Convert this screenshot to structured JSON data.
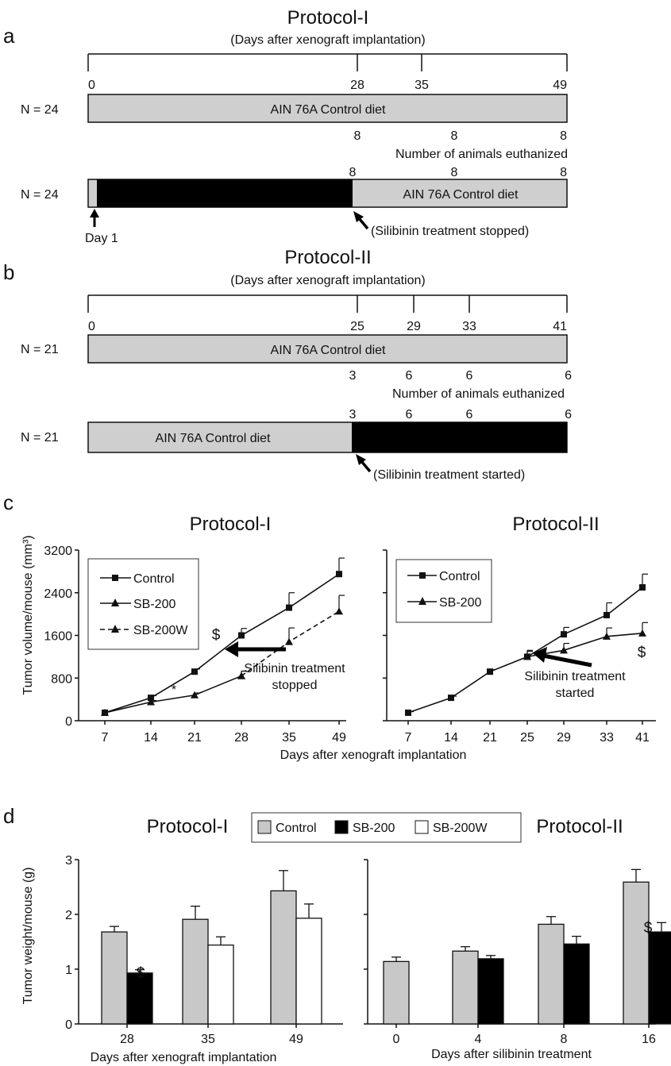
{
  "panel_a": {
    "letter": "a",
    "title": "Protocol-I",
    "subtitle": "(Days after xenograft implantation)",
    "days": [
      "0",
      "28",
      "35",
      "49"
    ],
    "control_n": "N = 24",
    "control_bar_label": "AIN 76A Control diet",
    "control_counts": [
      "8",
      "8",
      "8"
    ],
    "euthanized_label": "Number of animals euthanized",
    "treat_n": "N = 24",
    "treat_counts": [
      "8",
      "8",
      "8"
    ],
    "treat_bar_label": "AIN 76A Control diet",
    "day1": "Day 1",
    "stopped_note": "(Silibinin treatment stopped)"
  },
  "panel_b": {
    "letter": "b",
    "title": "Protocol-II",
    "subtitle": "(Days after xenograft implantation)",
    "days": [
      "0",
      "25",
      "29",
      "33",
      "41"
    ],
    "control_n": "N = 21",
    "control_bar_label": "AIN 76A Control diet",
    "control_counts": [
      "3",
      "6",
      "6",
      "6"
    ],
    "euthanized_label": "Number of animals euthanized",
    "treat_n": "N = 21",
    "treat_counts": [
      "3",
      "6",
      "6",
      "6"
    ],
    "treat_bar_label": "AIN 76A Control diet",
    "started_note": "(Silibinin treatment started)"
  },
  "panel_c": {
    "letter": "c"
  },
  "panel_d": {
    "letter": "d",
    "legend": [
      "Control",
      "SB-200",
      "SB-200W"
    ]
  },
  "chart_data": [
    {
      "type": "line",
      "title": "Protocol-I",
      "ylabel": "Tumor volume/mouse (mm³)",
      "xlabel": "Days after xenograft implantation",
      "x": [
        "7",
        "14",
        "21",
        "28",
        "35",
        "49"
      ],
      "ylim": [
        0,
        3200
      ],
      "yticks": [
        "0",
        "800",
        "1600",
        "2400",
        "3200"
      ],
      "legend_position": "top-left",
      "series": [
        {
          "name": "Control",
          "values": [
            150,
            430,
            920,
            1600,
            2120,
            2750
          ],
          "errors": [
            20,
            40,
            50,
            130,
            280,
            300
          ],
          "style": "solid",
          "marker": "square"
        },
        {
          "name": "SB-200",
          "values": [
            150,
            350,
            480,
            840,
            null,
            null
          ],
          "errors": [
            20,
            30,
            40,
            90,
            null,
            null
          ],
          "style": "solid",
          "marker": "triangle"
        },
        {
          "name": "SB-200W",
          "values": [
            null,
            null,
            null,
            840,
            1480,
            2050
          ],
          "errors": [
            null,
            null,
            null,
            90,
            260,
            300
          ],
          "style": "dashed",
          "marker": "triangle"
        }
      ],
      "annotations": [
        {
          "text": "*",
          "x": "21",
          "series": "SB-200"
        },
        {
          "text": "$",
          "x": "28",
          "series": "SB-200"
        },
        {
          "text": "Silibinin treatment",
          "line2": "stopped",
          "x": "28"
        }
      ]
    },
    {
      "type": "line",
      "title": "Protocol-II",
      "x": [
        "7",
        "14",
        "21",
        "25",
        "29",
        "33",
        "41"
      ],
      "ylim": [
        0,
        3200
      ],
      "legend_position": "top-left",
      "series": [
        {
          "name": "Control",
          "values": [
            150,
            430,
            920,
            1200,
            1620,
            1980,
            2500
          ],
          "errors": [
            20,
            30,
            40,
            120,
            130,
            230,
            250
          ],
          "marker": "square"
        },
        {
          "name": "SB-200",
          "values": [
            null,
            null,
            null,
            1200,
            1320,
            1580,
            1640
          ],
          "errors": [
            null,
            null,
            null,
            100,
            130,
            160,
            200
          ],
          "marker": "triangle"
        }
      ],
      "annotations": [
        {
          "text": "$",
          "x": "41",
          "series": "SB-200"
        },
        {
          "text": "Silibinin treatment",
          "line2": "started",
          "x": "25"
        }
      ]
    },
    {
      "type": "bar",
      "title": "Protocol-I",
      "ylabel": "Tumor weight/mouse (g)",
      "xlabel": "Days after xenograft implantation",
      "categories": [
        "28",
        "35",
        "49"
      ],
      "ylim": [
        0,
        3
      ],
      "yticks": [
        "0",
        "1",
        "2",
        "3"
      ],
      "series": [
        {
          "name": "Control",
          "values": [
            1.68,
            1.91,
            2.43
          ],
          "errors": [
            0.1,
            0.24,
            0.37
          ]
        },
        {
          "name": "SB-200",
          "values": [
            0.93,
            null,
            null
          ],
          "errors": [
            0.06,
            null,
            null
          ]
        },
        {
          "name": "SB-200W",
          "values": [
            null,
            1.44,
            1.93
          ],
          "errors": [
            null,
            0.15,
            0.26
          ]
        }
      ],
      "annotations": [
        {
          "text": "$",
          "category": "28",
          "series": "SB-200"
        }
      ]
    },
    {
      "type": "bar",
      "title": "Protocol-II",
      "xlabel": "Days after silibinin treatment",
      "categories": [
        "0",
        "4",
        "8",
        "16"
      ],
      "ylim": [
        0,
        3
      ],
      "series": [
        {
          "name": "Control",
          "values": [
            1.14,
            1.33,
            1.82,
            2.59
          ],
          "errors": [
            0.08,
            0.08,
            0.14,
            0.23
          ]
        },
        {
          "name": "SB-200",
          "values": [
            null,
            1.19,
            1.46,
            1.68
          ],
          "errors": [
            null,
            0.06,
            0.14,
            0.17
          ]
        }
      ],
      "annotations": [
        {
          "text": "$",
          "category": "16",
          "series": "SB-200"
        }
      ]
    }
  ]
}
